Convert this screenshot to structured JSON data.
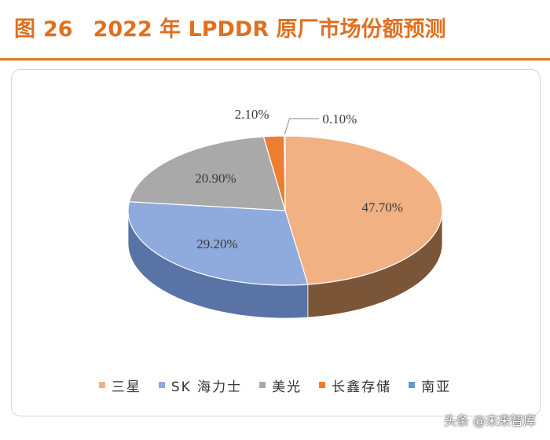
{
  "header": {
    "fig_label": "图",
    "fig_number": "26",
    "title": "2022 年 LPDDR 原厂市场份额预测"
  },
  "chart_data": {
    "type": "pie",
    "style": "3d",
    "title": "2022 年 LPDDR 原厂市场份额预测",
    "legend_position": "bottom",
    "series": [
      {
        "name": "三星",
        "value": 47.7,
        "label": "47.70%",
        "color": "#f2b183",
        "side_color": "#7a5538"
      },
      {
        "name": "SK 海力士",
        "value": 29.2,
        "label": "29.20%",
        "color": "#8faadc",
        "side_color": "#5a73a6"
      },
      {
        "name": "美光",
        "value": 20.9,
        "label": "20.90%",
        "color": "#a9a9a9",
        "side_color": "#7a7a7a"
      },
      {
        "name": "长鑫存储",
        "value": 2.1,
        "label": "2.10%",
        "color": "#ed7d31",
        "side_color": "#9c4f1c"
      },
      {
        "name": "南亚",
        "value": 0.1,
        "label": "0.10%",
        "color": "#5b9bd5",
        "side_color": "#3b6f9e"
      }
    ]
  },
  "watermark": "头条 @未来智库"
}
